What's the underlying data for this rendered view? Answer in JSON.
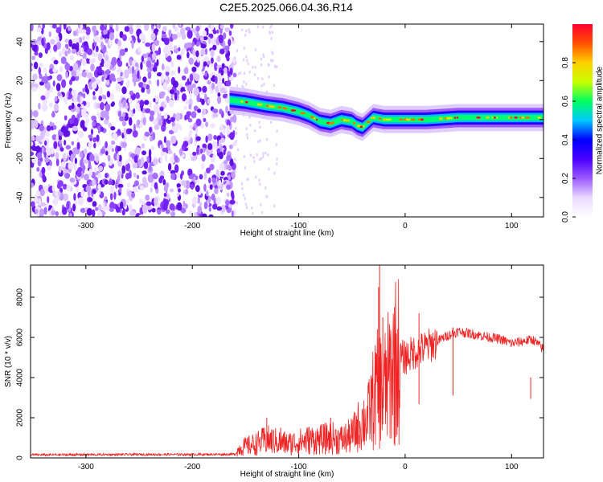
{
  "page": {
    "title": "C2E5.2025.066.04.36.R14"
  },
  "chart_data": [
    {
      "type": "heatmap",
      "title": "C2E5.2025.066.04.36.R14",
      "xlabel": "Height of straight line (km)",
      "ylabel": "Frequency (Hz)",
      "xlim": [
        -352,
        130
      ],
      "ylim": [
        -50,
        49
      ],
      "x_ticks": [
        -300,
        -200,
        -100,
        0,
        100
      ],
      "y_ticks": [
        -40,
        -20,
        0,
        20,
        40
      ],
      "noise_region": {
        "x_range": [
          -352,
          -160
        ],
        "y_range": [
          -50,
          49
        ]
      },
      "dispersed_echo_x_range": [
        -160,
        -120
      ],
      "ridge": {
        "x": [
          -165,
          -150,
          -130,
          -115,
          -100,
          -90,
          -80,
          -70,
          -60,
          -50,
          -45,
          -40,
          -30,
          -20,
          -10,
          0,
          20,
          50,
          80,
          110,
          130
        ],
        "y": [
          10,
          9,
          7,
          6,
          4,
          2,
          -1,
          -2,
          0,
          -1,
          -3,
          -4,
          1,
          0,
          0,
          0,
          0,
          1,
          1,
          1,
          1
        ]
      },
      "colorbar": {
        "label": "Normalized spectral amplitude",
        "range": [
          0,
          1
        ],
        "ticks": [
          "0.0",
          "0.2",
          "0.4",
          "0.6",
          "0.8"
        ],
        "colors": [
          "#ffffff",
          "#e9d8ff",
          "#9b59ff",
          "#4a00ff",
          "#0000ff",
          "#00c8ff",
          "#00ff60",
          "#c8ff00",
          "#ffd000",
          "#ff5000",
          "#ff0030"
        ]
      },
      "grid": false
    },
    {
      "type": "line",
      "xlabel": "Height of straight line (km)",
      "ylabel": "SNR (10 * v/v)",
      "xlim": [
        -352,
        130
      ],
      "ylim": [
        0,
        9600
      ],
      "x_ticks": [
        -300,
        -200,
        -100,
        0,
        100
      ],
      "y_ticks": [
        0,
        2000,
        4000,
        6000,
        8000
      ],
      "color": "#ee2222",
      "series": [
        {
          "x": [
            -352,
            -300,
            -250,
            -200,
            -160,
            -155,
            -140,
            -130,
            -120,
            -110,
            -100,
            -90,
            -80,
            -70,
            -60,
            -50,
            -45,
            -40,
            -35,
            -30,
            -25,
            -20,
            -15,
            -10,
            -5,
            0,
            10,
            20,
            30,
            40,
            50,
            60,
            70,
            80,
            90,
            100,
            110,
            120,
            130
          ],
          "y": [
            150,
            160,
            170,
            170,
            180,
            500,
            700,
            900,
            800,
            700,
            800,
            900,
            900,
            1000,
            900,
            1100,
            1500,
            1800,
            2000,
            3000,
            3500,
            3300,
            4000,
            4800,
            5000,
            5000,
            5300,
            5500,
            5800,
            6100,
            6300,
            6200,
            6100,
            6000,
            5900,
            5700,
            5800,
            5900,
            5400
          ],
          "spikes": [
            {
              "x": -130,
              "y": 2000
            },
            {
              "x": -117,
              "y": 1500
            },
            {
              "x": -70,
              "y": 2000
            },
            {
              "x": -33,
              "y": 2500
            },
            {
              "x": -25,
              "y": 8500
            },
            {
              "x": -24,
              "y": 9600
            },
            {
              "x": -21,
              "y": 7000
            },
            {
              "x": 13,
              "y": 7200
            },
            {
              "x": 45,
              "y": 6500
            },
            {
              "x": 118,
              "y": 4000
            }
          ]
        }
      ],
      "grid": false
    }
  ]
}
